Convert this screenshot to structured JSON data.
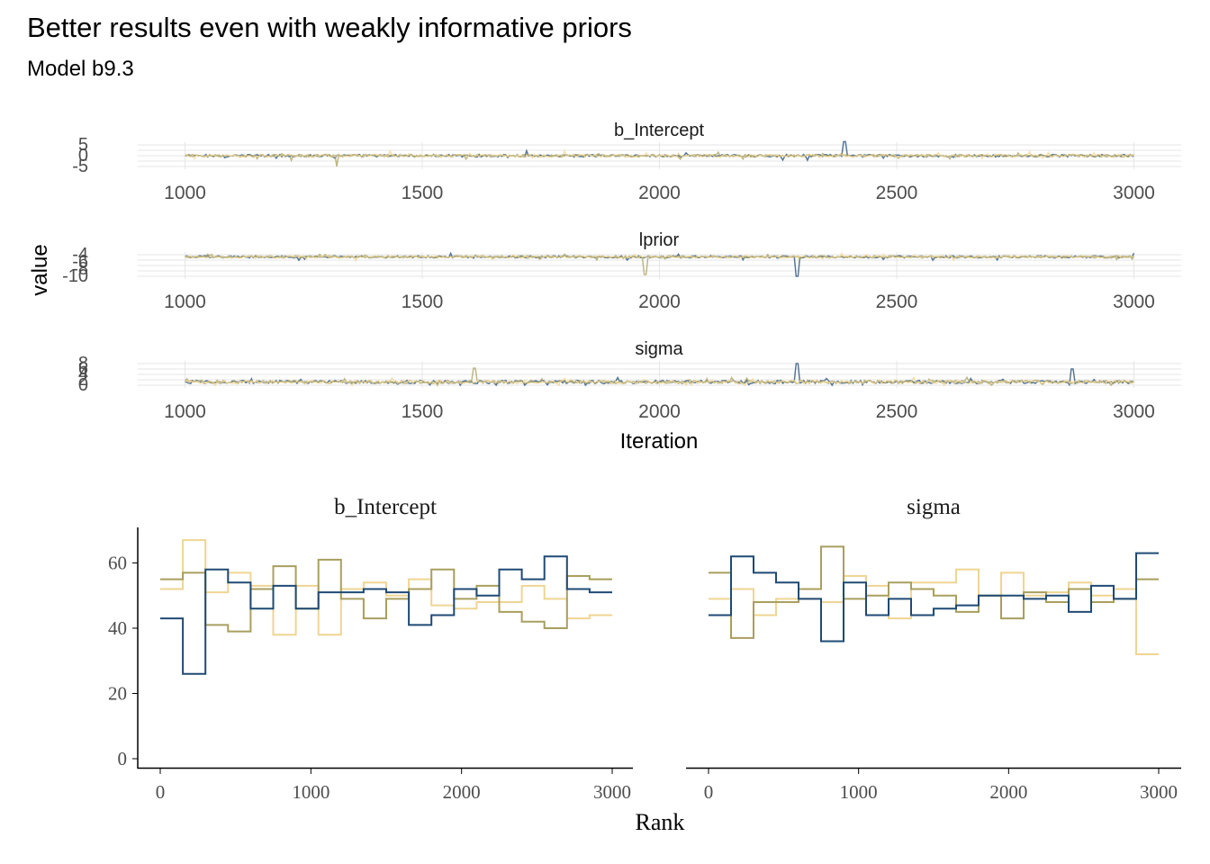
{
  "title": "Better results even with weakly informative priors",
  "subtitle": "Model b9.3",
  "colors": {
    "chain1": "#1f4a74",
    "chain2": "#a89f5e",
    "chain3": "#efd593",
    "grid": "#e6e6e6",
    "text": "#000000",
    "axis_text": "#4d4d4d"
  },
  "chart_data": [
    {
      "type": "line",
      "title": "",
      "xlabel": "Iteration",
      "ylabel": "value",
      "xlim": [
        1000,
        3000
      ],
      "x_ticks": [
        "1000",
        "1500",
        "2000",
        "2500",
        "3000"
      ],
      "chains": 3,
      "panels": [
        {
          "strip": "b_Intercept",
          "y_ticks": [
            "5",
            "0",
            "-5"
          ],
          "ylim": [
            -5,
            5
          ],
          "center": 0,
          "spread": 1.2,
          "spikes": [
            {
              "x": 2390,
              "y": 6.5
            },
            {
              "x": 1320,
              "y": -5
            }
          ]
        },
        {
          "strip": "lprior",
          "y_ticks": [
            "-4",
            "-6",
            "-8",
            "-10"
          ],
          "ylim": [
            -10,
            -4
          ],
          "center": -4.6,
          "spread": 0.6,
          "spikes": [
            {
              "x": 2290,
              "y": -10
            },
            {
              "x": 1970,
              "y": -9.5
            }
          ]
        },
        {
          "strip": "sigma",
          "y_ticks": [
            "8",
            "6",
            "4",
            "2",
            "0"
          ],
          "ylim": [
            0,
            8
          ],
          "center": 1.2,
          "spread": 1.2,
          "spikes": [
            {
              "x": 2290,
              "y": 8
            },
            {
              "x": 1610,
              "y": 6.3
            },
            {
              "x": 2870,
              "y": 6
            }
          ]
        }
      ]
    },
    {
      "type": "line",
      "title": "",
      "xlabel": "Rank",
      "ylabel": "",
      "xlim": [
        0,
        3000
      ],
      "ylim": [
        0,
        70
      ],
      "x_ticks": [
        "0",
        "1000",
        "2000",
        "3000"
      ],
      "y_ticks": [
        "0",
        "20",
        "40",
        "60"
      ],
      "bin_edges": [
        0,
        150,
        300,
        450,
        600,
        750,
        900,
        1050,
        1200,
        1350,
        1500,
        1650,
        1800,
        1950,
        2100,
        2250,
        2400,
        2550,
        2700,
        2850,
        3000
      ],
      "panels": [
        {
          "strip": "b_Intercept",
          "series": [
            {
              "values": [
                43,
                26,
                58,
                54,
                46,
                53,
                46,
                51,
                51,
                52,
                51,
                41,
                44,
                52,
                50,
                58,
                55,
                62,
                52,
                51
              ]
            },
            {
              "values": [
                55,
                57,
                41,
                39,
                52,
                59,
                46,
                61,
                49,
                43,
                49,
                52,
                58,
                49,
                53,
                45,
                42,
                40,
                56,
                55
              ]
            },
            {
              "values": [
                52,
                67,
                51,
                57,
                53,
                38,
                53,
                38,
                52,
                54,
                50,
                55,
                47,
                46,
                48,
                48,
                53,
                49,
                43,
                44
              ]
            }
          ]
        },
        {
          "strip": "sigma",
          "series": [
            {
              "values": [
                44,
                62,
                57,
                54,
                49,
                36,
                54,
                44,
                49,
                44,
                46,
                47,
                50,
                50,
                49,
                50,
                45,
                53,
                49,
                63
              ]
            },
            {
              "values": [
                57,
                37,
                48,
                48,
                52,
                65,
                49,
                50,
                54,
                52,
                50,
                45,
                50,
                43,
                51,
                48,
                52,
                48,
                49,
                55
              ]
            },
            {
              "values": [
                49,
                52,
                44,
                49,
                49,
                48,
                56,
                53,
                43,
                54,
                54,
                58,
                50,
                57,
                50,
                51,
                54,
                50,
                52,
                32
              ]
            }
          ]
        }
      ]
    }
  ]
}
